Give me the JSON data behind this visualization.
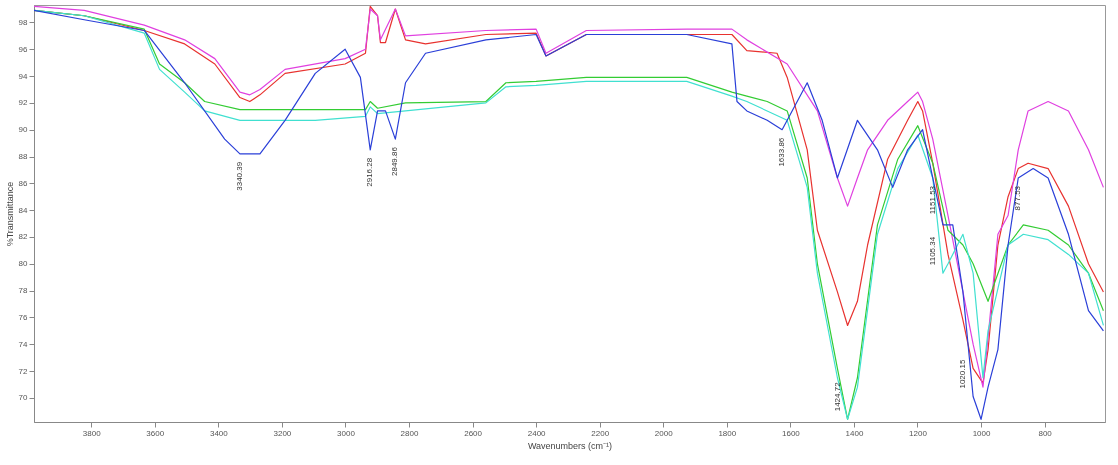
{
  "chart_data": {
    "type": "line",
    "xlabel": "Wavenumbers (cm⁻¹)",
    "ylabel": "%Transmittance",
    "xlim": [
      3980,
      610
    ],
    "ylim": [
      68.2,
      99.3
    ],
    "xticks": [
      3800,
      3600,
      3400,
      3200,
      3000,
      2800,
      2600,
      2400,
      2200,
      2000,
      1800,
      1600,
      1400,
      1200,
      1000,
      800
    ],
    "yticks": [
      70,
      72,
      74,
      76,
      78,
      80,
      82,
      84,
      86,
      88,
      90,
      92,
      94,
      96,
      98
    ],
    "grid": false,
    "marker": "none",
    "line_style": "solid",
    "series": [
      {
        "color": "#e8322f",
        "x": [
          3980,
          3822,
          3633,
          3506,
          3411,
          3332,
          3301,
          3269,
          3190,
          3001,
          2937,
          2922,
          2899,
          2890,
          2874,
          2843,
          2811,
          2748,
          2558,
          2400,
          2369,
          2242,
          1926,
          1784,
          1737,
          1642,
          1610,
          1547,
          1515,
          1452,
          1420,
          1389,
          1357,
          1294,
          1231,
          1199,
          1184,
          1152,
          1104,
          1057,
          1025,
          994,
          978,
          947,
          915,
          883,
          852,
          789,
          725,
          662,
          615
        ],
        "values": [
          98.9,
          98.5,
          97.4,
          96.4,
          94.9,
          92.4,
          92.1,
          92.6,
          94.2,
          94.9,
          95.7,
          99.2,
          98.5,
          96.5,
          96.5,
          99.0,
          96.7,
          96.4,
          97.1,
          97.2,
          95.5,
          97.1,
          97.1,
          97.1,
          95.9,
          95.7,
          93.9,
          88.5,
          82.5,
          77.9,
          75.4,
          77.2,
          81.4,
          87.8,
          90.7,
          92.1,
          91.4,
          87.5,
          80.7,
          75.8,
          72.2,
          71.1,
          73.6,
          81.4,
          85.0,
          87.1,
          87.5,
          87.1,
          84.3,
          80.0,
          77.9
        ]
      },
      {
        "color": "#e040e0",
        "x": [
          3980,
          3822,
          3633,
          3506,
          3411,
          3332,
          3301,
          3269,
          3190,
          3001,
          2937,
          2922,
          2899,
          2890,
          2843,
          2811,
          2558,
          2400,
          2369,
          2242,
          1926,
          1784,
          1737,
          1610,
          1515,
          1452,
          1420,
          1389,
          1357,
          1294,
          1231,
          1199,
          1184,
          1152,
          1104,
          1057,
          1025,
          994,
          978,
          947,
          915,
          883,
          852,
          789,
          725,
          662,
          615
        ],
        "values": [
          99.2,
          98.9,
          97.8,
          96.7,
          95.3,
          92.8,
          92.6,
          93.0,
          94.5,
          95.3,
          96.0,
          99.0,
          98.5,
          96.7,
          99.0,
          97.0,
          97.4,
          97.5,
          95.7,
          97.4,
          97.5,
          97.5,
          96.7,
          94.9,
          91.4,
          86.4,
          84.3,
          86.4,
          88.5,
          90.7,
          92.1,
          92.8,
          92.1,
          89.3,
          83.6,
          77.9,
          74.0,
          70.8,
          74.5,
          82.2,
          83.6,
          88.5,
          91.4,
          92.1,
          91.4,
          88.5,
          85.7
        ]
      },
      {
        "color": "#33cc33",
        "x": [
          3980,
          3822,
          3633,
          3585,
          3506,
          3443,
          3332,
          3095,
          2937,
          2922,
          2899,
          2811,
          2558,
          2495,
          2400,
          2242,
          1926,
          1784,
          1737,
          1673,
          1610,
          1547,
          1515,
          1452,
          1420,
          1389,
          1326,
          1262,
          1199,
          1152,
          1104,
          1057,
          1025,
          978,
          915,
          867,
          789,
          725,
          662,
          615
        ],
        "values": [
          98.9,
          98.5,
          97.5,
          94.9,
          93.5,
          92.1,
          91.5,
          91.5,
          91.5,
          92.1,
          91.6,
          92.0,
          92.1,
          93.5,
          93.6,
          93.9,
          93.9,
          92.8,
          92.5,
          92.1,
          91.4,
          86.4,
          80.0,
          72.2,
          68.4,
          71.5,
          82.9,
          87.8,
          90.3,
          87.5,
          82.5,
          81.4,
          80.0,
          77.2,
          81.4,
          82.9,
          82.5,
          81.4,
          79.3,
          76.5
        ]
      },
      {
        "color": "#40e0d0",
        "x": [
          3980,
          3822,
          3633,
          3585,
          3506,
          3443,
          3332,
          3095,
          2937,
          2922,
          2899,
          2811,
          2558,
          2495,
          2400,
          2242,
          1926,
          1784,
          1737,
          1673,
          1610,
          1547,
          1515,
          1452,
          1420,
          1389,
          1326,
          1262,
          1199,
          1152,
          1120,
          1104,
          1057,
          1025,
          994,
          978,
          915,
          867,
          789,
          725,
          662,
          615
        ],
        "values": [
          98.9,
          98.5,
          97.2,
          94.5,
          92.8,
          91.4,
          90.7,
          90.7,
          91.0,
          91.7,
          91.2,
          91.4,
          92.0,
          93.2,
          93.3,
          93.6,
          93.6,
          92.5,
          92.1,
          91.4,
          90.7,
          85.7,
          79.3,
          71.5,
          68.4,
          70.8,
          82.2,
          87.1,
          89.6,
          86.4,
          79.3,
          80.0,
          82.2,
          79.3,
          71.5,
          75.0,
          81.4,
          82.2,
          81.8,
          80.7,
          79.3,
          75.4
        ]
      },
      {
        "color": "#2a3fd8",
        "x": [
          3980,
          3822,
          3633,
          3506,
          3380,
          3332,
          3269,
          3190,
          3095,
          3001,
          2953,
          2922,
          2899,
          2874,
          2843,
          2811,
          2748,
          2558,
          2400,
          2369,
          2242,
          1926,
          1784,
          1768,
          1737,
          1673,
          1626,
          1547,
          1500,
          1452,
          1389,
          1326,
          1278,
          1231,
          1184,
          1152,
          1120,
          1089,
          1057,
          1025,
          1000,
          978,
          947,
          915,
          883,
          836,
          789,
          725,
          662,
          615
        ],
        "values": [
          98.9,
          98.2,
          97.4,
          93.5,
          89.3,
          88.2,
          88.2,
          90.7,
          94.2,
          96.0,
          93.9,
          88.5,
          91.4,
          91.4,
          89.3,
          93.5,
          95.7,
          96.7,
          97.1,
          95.5,
          97.1,
          97.1,
          96.4,
          92.1,
          91.4,
          90.7,
          90.0,
          93.5,
          90.7,
          86.4,
          90.7,
          88.5,
          85.7,
          88.5,
          90.0,
          86.4,
          82.9,
          82.9,
          77.9,
          70.1,
          68.4,
          70.8,
          73.6,
          81.4,
          86.4,
          87.1,
          86.4,
          82.2,
          76.5,
          75.0
        ]
      }
    ],
    "annotations": [
      {
        "text": "3340.39",
        "x": 3332,
        "y": 88.2
      },
      {
        "text": "2916.28",
        "x": 2922,
        "y": 88.5
      },
      {
        "text": "2849.86",
        "x": 2843,
        "y": 89.3
      },
      {
        "text": "1633.86",
        "x": 1626,
        "y": 90.0
      },
      {
        "text": "1424.72",
        "x": 1420,
        "y": 68.4
      },
      {
        "text": "1151.53",
        "x": 1152,
        "y": 86.4
      },
      {
        "text": "1105.34",
        "x": 1120,
        "y": 79.3
      },
      {
        "text": "1020.15",
        "x": 1025,
        "y": 70.1
      },
      {
        "text": "877.53",
        "x": 883,
        "y": 86.4
      }
    ]
  }
}
